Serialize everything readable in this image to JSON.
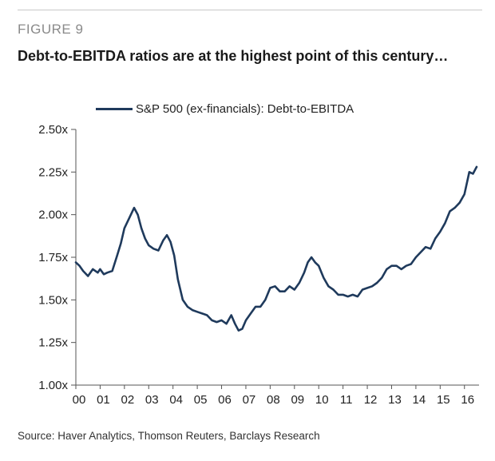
{
  "figure_label": "FIGURE 9",
  "title": "Debt-to-EBITDA ratios are at the highest point of this century…",
  "source": "Source: Haver Analytics, Thomson Reuters, Barclays Research",
  "colors": {
    "line": "#1f3a5c",
    "axis": "#555555"
  },
  "chart_data": {
    "type": "line",
    "title": "",
    "xlabel": "",
    "ylabel": "",
    "legend_position": "top",
    "grid": false,
    "xlim": [
      2000,
      2016.6
    ],
    "ylim": [
      1.0,
      2.5
    ],
    "y_ticks": [
      "1.00x",
      "1.25x",
      "1.50x",
      "1.75x",
      "2.00x",
      "2.25x",
      "2.50x"
    ],
    "y_tick_values": [
      1.0,
      1.25,
      1.5,
      1.75,
      2.0,
      2.25,
      2.5
    ],
    "x_ticks": [
      "00",
      "01",
      "02",
      "03",
      "04",
      "05",
      "06",
      "07",
      "08",
      "09",
      "10",
      "11",
      "12",
      "13",
      "14",
      "15",
      "16"
    ],
    "x_tick_values": [
      2000,
      2001,
      2002,
      2003,
      2004,
      2005,
      2006,
      2007,
      2008,
      2009,
      2010,
      2011,
      2012,
      2013,
      2014,
      2015,
      2016
    ],
    "series": [
      {
        "name": "S&P 500 (ex-financials): Debt-to-EBITDA",
        "x": [
          2000.0,
          2000.15,
          2000.3,
          2000.5,
          2000.7,
          2000.9,
          2001.0,
          2001.15,
          2001.3,
          2001.5,
          2001.7,
          2001.85,
          2002.0,
          2002.2,
          2002.4,
          2002.55,
          2002.7,
          2002.85,
          2003.0,
          2003.2,
          2003.4,
          2003.6,
          2003.75,
          2003.9,
          2004.05,
          2004.2,
          2004.4,
          2004.6,
          2004.8,
          2005.0,
          2005.2,
          2005.4,
          2005.6,
          2005.8,
          2006.0,
          2006.2,
          2006.4,
          2006.55,
          2006.7,
          2006.85,
          2007.0,
          2007.2,
          2007.4,
          2007.6,
          2007.8,
          2008.0,
          2008.2,
          2008.4,
          2008.6,
          2008.8,
          2009.0,
          2009.2,
          2009.4,
          2009.55,
          2009.7,
          2009.85,
          2010.0,
          2010.2,
          2010.4,
          2010.6,
          2010.8,
          2011.0,
          2011.2,
          2011.4,
          2011.6,
          2011.8,
          2012.0,
          2012.2,
          2012.4,
          2012.6,
          2012.8,
          2013.0,
          2013.2,
          2013.4,
          2013.6,
          2013.8,
          2014.0,
          2014.2,
          2014.4,
          2014.6,
          2014.8,
          2015.0,
          2015.2,
          2015.4,
          2015.6,
          2015.8,
          2016.0,
          2016.2,
          2016.35,
          2016.5
        ],
        "values": [
          1.72,
          1.7,
          1.67,
          1.64,
          1.68,
          1.66,
          1.68,
          1.65,
          1.66,
          1.67,
          1.76,
          1.83,
          1.92,
          1.98,
          2.04,
          2.0,
          1.92,
          1.86,
          1.82,
          1.8,
          1.79,
          1.85,
          1.88,
          1.84,
          1.76,
          1.62,
          1.5,
          1.46,
          1.44,
          1.43,
          1.42,
          1.41,
          1.38,
          1.37,
          1.38,
          1.36,
          1.41,
          1.36,
          1.32,
          1.33,
          1.38,
          1.42,
          1.46,
          1.46,
          1.5,
          1.57,
          1.58,
          1.55,
          1.55,
          1.58,
          1.56,
          1.6,
          1.66,
          1.72,
          1.75,
          1.72,
          1.7,
          1.63,
          1.58,
          1.56,
          1.53,
          1.53,
          1.52,
          1.53,
          1.52,
          1.56,
          1.57,
          1.58,
          1.6,
          1.63,
          1.68,
          1.7,
          1.7,
          1.68,
          1.7,
          1.71,
          1.75,
          1.78,
          1.81,
          1.8,
          1.86,
          1.9,
          1.95,
          2.02,
          2.04,
          2.07,
          2.12,
          2.25,
          2.24,
          2.28
        ]
      }
    ]
  }
}
